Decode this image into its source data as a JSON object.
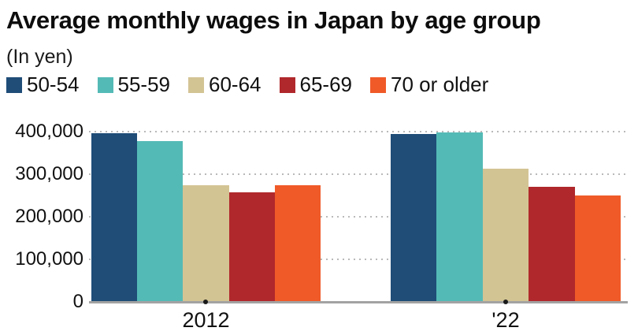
{
  "title": "Average monthly wages in Japan by age group",
  "subtitle": "(In yen)",
  "chart_data": {
    "type": "bar",
    "title": "Average monthly wages in Japan by age group",
    "subtitle": "(In yen)",
    "categories": [
      "2012",
      "'22"
    ],
    "series": [
      {
        "name": "50-54",
        "color": "#1f4d78",
        "values": [
          394000,
          392000
        ]
      },
      {
        "name": "55-59",
        "color": "#54bab6",
        "values": [
          376000,
          397000
        ]
      },
      {
        "name": "60-64",
        "color": "#d3c494",
        "values": [
          273000,
          311000
        ]
      },
      {
        "name": "65-69",
        "color": "#b0282c",
        "values": [
          256000,
          268000
        ]
      },
      {
        "name": "70 or older",
        "color": "#f05a28",
        "values": [
          273000,
          249000
        ]
      }
    ],
    "ylim": [
      0,
      400000
    ],
    "y_ticks": [
      "400,000",
      "300,000",
      "200,000",
      "100,000",
      "0"
    ],
    "grid": "horizontal dotted",
    "legend_position": "top"
  }
}
